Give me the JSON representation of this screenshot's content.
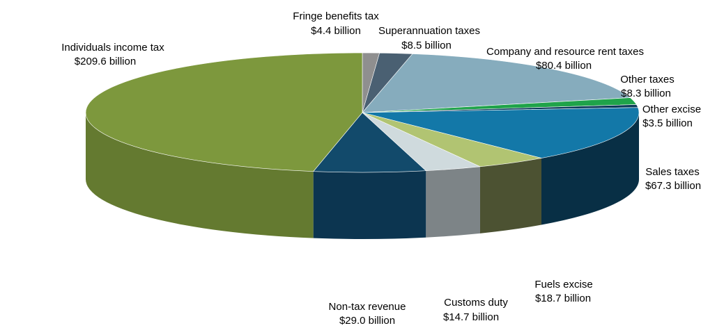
{
  "chart_data": {
    "type": "pie",
    "title": "",
    "slices": [
      {
        "name": "Fringe benefits tax",
        "label": "Fringe benefits tax",
        "value_label": "$4.4 billion",
        "value": 4.4,
        "color": "#8f8f8f",
        "side_color": "#6b6b6b"
      },
      {
        "name": "Superannuation taxes",
        "label": "Superannuation taxes",
        "value_label": "$8.5 billion",
        "value": 8.5,
        "color": "#4a6072",
        "side_color": "#33434f"
      },
      {
        "name": "Company and resource rent taxes",
        "label": "Company and resource rent taxes",
        "value_label": "$80.4 billion",
        "value": 80.4,
        "color": "#86acbd",
        "side_color": "#5e7f8e"
      },
      {
        "name": "Other taxes",
        "label": "Other taxes",
        "value_label": "$8.3 billion",
        "value": 8.3,
        "color": "#1fa34a",
        "side_color": "#157434"
      },
      {
        "name": "Other excise",
        "label": "Other excise",
        "value_label": "$3.5 billion",
        "value": 3.5,
        "color": "#0d3a5a",
        "side_color": "#082a42"
      },
      {
        "name": "Sales taxes",
        "label": "Sales taxes",
        "value_label": "$67.3 billion",
        "value": 67.3,
        "color": "#1378a8",
        "side_color": "#082f45"
      },
      {
        "name": "Fuels excise",
        "label": "Fuels excise",
        "value_label": "$18.7 billion",
        "value": 18.7,
        "color": "#b1c472",
        "side_color": "#4c5232"
      },
      {
        "name": "Customs duty",
        "label": "Customs duty",
        "value_label": "$14.7 billion",
        "value": 14.7,
        "color": "#cfdadd",
        "side_color": "#7d8487"
      },
      {
        "name": "Non-tax revenue",
        "label": "Non-tax revenue",
        "value_label": "$29.0 billion",
        "value": 29.0,
        "color": "#124a6b",
        "side_color": "#0c3550"
      },
      {
        "name": "Individuals income tax",
        "label": "Individuals income tax",
        "value_label": "$209.6 billion",
        "value": 209.6,
        "color": "#7d983d",
        "side_color": "#647a30"
      }
    ],
    "start_angle_deg": -90,
    "direction": "clockwise",
    "style": "3d"
  }
}
